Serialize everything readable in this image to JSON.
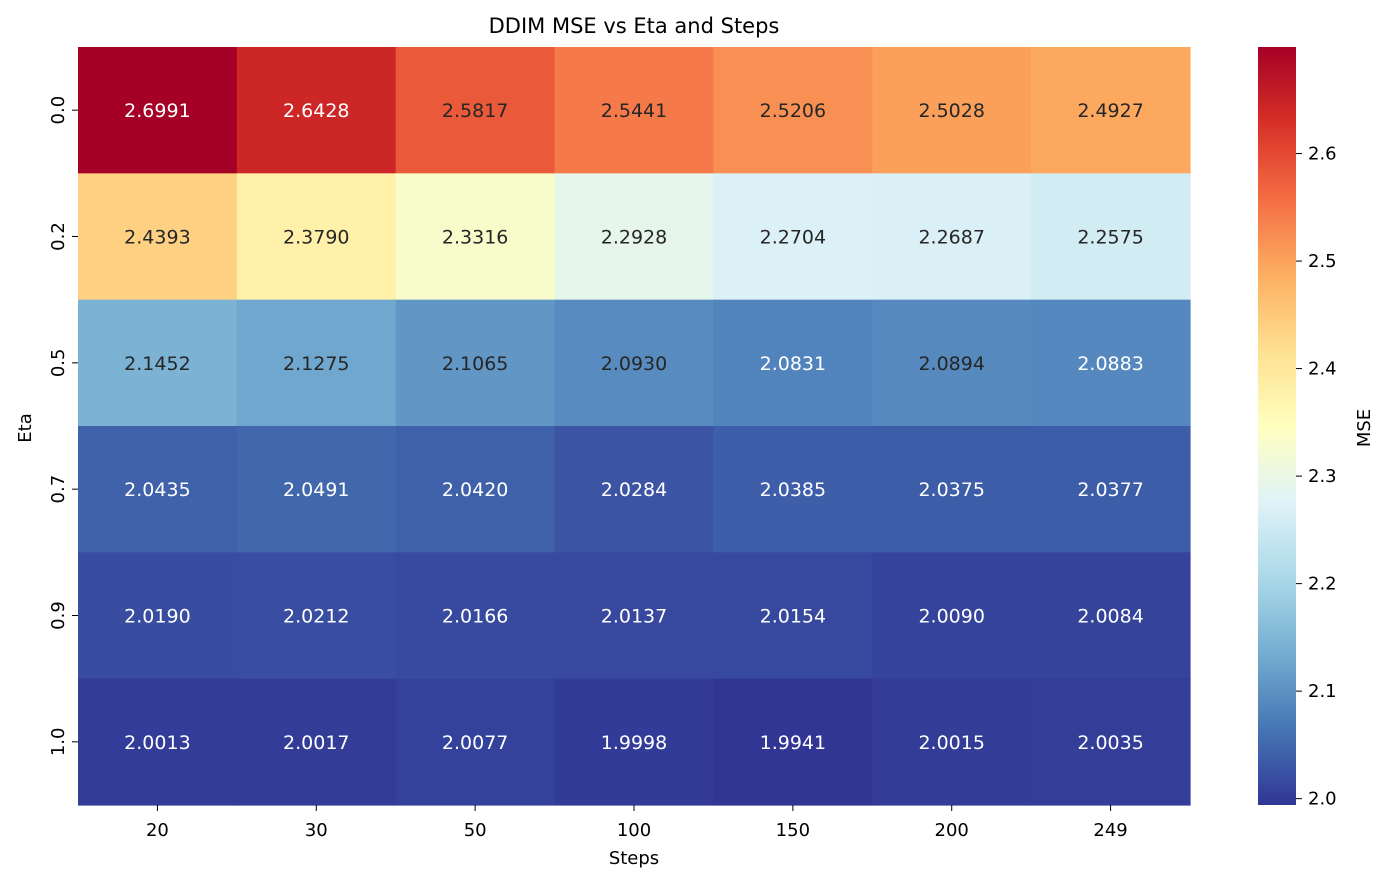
{
  "chart_data": {
    "type": "heatmap",
    "title": "DDIM MSE vs Eta and Steps",
    "xlabel": "Steps",
    "ylabel": "Eta",
    "x_categories": [
      "20",
      "30",
      "50",
      "100",
      "150",
      "200",
      "249"
    ],
    "y_categories": [
      "0.0",
      "0.2",
      "0.5",
      "0.7",
      "0.9",
      "1.0"
    ],
    "values": [
      [
        2.6991,
        2.6428,
        2.5817,
        2.5441,
        2.5206,
        2.5028,
        2.4927
      ],
      [
        2.4393,
        2.379,
        2.3316,
        2.2928,
        2.2704,
        2.2687,
        2.2575
      ],
      [
        2.1452,
        2.1275,
        2.1065,
        2.093,
        2.0831,
        2.0894,
        2.0883
      ],
      [
        2.0435,
        2.0491,
        2.042,
        2.0284,
        2.0385,
        2.0375,
        2.0377
      ],
      [
        2.019,
        2.0212,
        2.0166,
        2.0137,
        2.0154,
        2.009,
        2.0084
      ],
      [
        2.0013,
        2.0017,
        2.0077,
        1.9998,
        1.9941,
        2.0015,
        2.0035
      ]
    ],
    "value_format": "4 decimals",
    "colormap": "RdYlBu_r",
    "colormap_stops": [
      "#313695",
      "#4575b4",
      "#74add1",
      "#abd9e9",
      "#e0f3f8",
      "#ffffbf",
      "#fee090",
      "#fdae61",
      "#f46d43",
      "#d73027",
      "#a50026"
    ],
    "colorbar": {
      "label": "MSE",
      "range": [
        1.9941,
        2.6991
      ],
      "ticks": [
        "2.0",
        "2.1",
        "2.2",
        "2.3",
        "2.4",
        "2.5",
        "2.6"
      ]
    }
  }
}
